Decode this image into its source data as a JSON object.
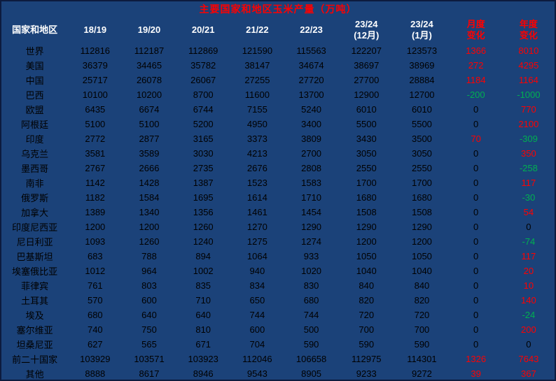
{
  "colors": {
    "header_bg": "#1b4279",
    "title_text": "#ff0000",
    "header_text": "#ffffff",
    "accent_header_text": "#ff0000",
    "positive": "#ff0000",
    "negative": "#00b050",
    "zero": "#000000",
    "body_text": "#000000"
  },
  "chart_data": {
    "type": "table",
    "title": "主要国家和地区玉米产量（万吨）",
    "columns": [
      {
        "label": "国家和地区",
        "accent": false
      },
      {
        "label": "18/19",
        "accent": false
      },
      {
        "label": "19/20",
        "accent": false
      },
      {
        "label": "20/21",
        "accent": false
      },
      {
        "label": "21/22",
        "accent": false
      },
      {
        "label": "22/23",
        "accent": false
      },
      {
        "label": "23/24\n(12月)",
        "accent": false
      },
      {
        "label": "23/24\n(1月)",
        "accent": false
      },
      {
        "label": "月度\n变化",
        "accent": true
      },
      {
        "label": "年度\n变化",
        "accent": true
      }
    ],
    "rows": [
      {
        "name": "世界",
        "values": [
          112816,
          112187,
          112869,
          121590,
          115563,
          122207,
          123573
        ],
        "monthly": 1366,
        "yearly": 8010
      },
      {
        "name": "美国",
        "values": [
          36379,
          34465,
          35782,
          38147,
          34674,
          38697,
          38969
        ],
        "monthly": 272,
        "yearly": 4295
      },
      {
        "name": "中国",
        "values": [
          25717,
          26078,
          26067,
          27255,
          27720,
          27700,
          28884
        ],
        "monthly": 1184,
        "yearly": 1164
      },
      {
        "name": "巴西",
        "values": [
          10100,
          10200,
          8700,
          11600,
          13700,
          12900,
          12700
        ],
        "monthly": -200,
        "yearly": -1000
      },
      {
        "name": "欧盟",
        "values": [
          6435,
          6674,
          6744,
          7155,
          5240,
          6010,
          6010
        ],
        "monthly": 0,
        "yearly": 770
      },
      {
        "name": "阿根廷",
        "values": [
          5100,
          5100,
          5200,
          4950,
          3400,
          5500,
          5500
        ],
        "monthly": 0,
        "yearly": 2100
      },
      {
        "name": "印度",
        "values": [
          2772,
          2877,
          3165,
          3373,
          3809,
          3430,
          3500
        ],
        "monthly": 70,
        "yearly": -309
      },
      {
        "name": "乌克兰",
        "values": [
          3581,
          3589,
          3030,
          4213,
          2700,
          3050,
          3050
        ],
        "monthly": 0,
        "yearly": 350
      },
      {
        "name": "墨西哥",
        "values": [
          2767,
          2666,
          2735,
          2676,
          2808,
          2550,
          2550
        ],
        "monthly": 0,
        "yearly": -258
      },
      {
        "name": "南非",
        "values": [
          1142,
          1428,
          1387,
          1523,
          1583,
          1700,
          1700
        ],
        "monthly": 0,
        "yearly": 117
      },
      {
        "name": "俄罗斯",
        "values": [
          1182,
          1584,
          1695,
          1614,
          1710,
          1680,
          1680
        ],
        "monthly": 0,
        "yearly": -30
      },
      {
        "name": "加拿大",
        "values": [
          1389,
          1340,
          1356,
          1461,
          1454,
          1508,
          1508
        ],
        "monthly": 0,
        "yearly": 54
      },
      {
        "name": "印度尼西亚",
        "values": [
          1200,
          1200,
          1260,
          1270,
          1290,
          1290,
          1290
        ],
        "monthly": 0,
        "yearly": 0
      },
      {
        "name": "尼日利亚",
        "values": [
          1093,
          1260,
          1240,
          1275,
          1274,
          1200,
          1200
        ],
        "monthly": 0,
        "yearly": -74
      },
      {
        "name": "巴基斯坦",
        "values": [
          683,
          788,
          894,
          1064,
          933,
          1050,
          1050
        ],
        "monthly": 0,
        "yearly": 117
      },
      {
        "name": "埃塞俄比亚",
        "values": [
          1012,
          964,
          1002,
          940,
          1020,
          1040,
          1040
        ],
        "monthly": 0,
        "yearly": 20
      },
      {
        "name": "菲律宾",
        "values": [
          761,
          803,
          835,
          834,
          830,
          840,
          840
        ],
        "monthly": 0,
        "yearly": 10
      },
      {
        "name": "土耳其",
        "values": [
          570,
          600,
          710,
          650,
          680,
          820,
          820
        ],
        "monthly": 0,
        "yearly": 140
      },
      {
        "name": "埃及",
        "values": [
          680,
          640,
          640,
          744,
          744,
          720,
          720
        ],
        "monthly": 0,
        "yearly": -24
      },
      {
        "name": "塞尔维亚",
        "values": [
          740,
          750,
          810,
          600,
          500,
          700,
          700
        ],
        "monthly": 0,
        "yearly": 200
      },
      {
        "name": "坦桑尼亚",
        "values": [
          627,
          565,
          671,
          704,
          590,
          590,
          590
        ],
        "monthly": 0,
        "yearly": 0
      },
      {
        "name": "前二十国家",
        "values": [
          103929,
          103571,
          103923,
          112046,
          106658,
          112975,
          114301
        ],
        "monthly": 1326,
        "yearly": 7643
      },
      {
        "name": "其他",
        "values": [
          8888,
          8617,
          8946,
          9543,
          8905,
          9233,
          9272
        ],
        "monthly": 39,
        "yearly": 367
      }
    ]
  }
}
